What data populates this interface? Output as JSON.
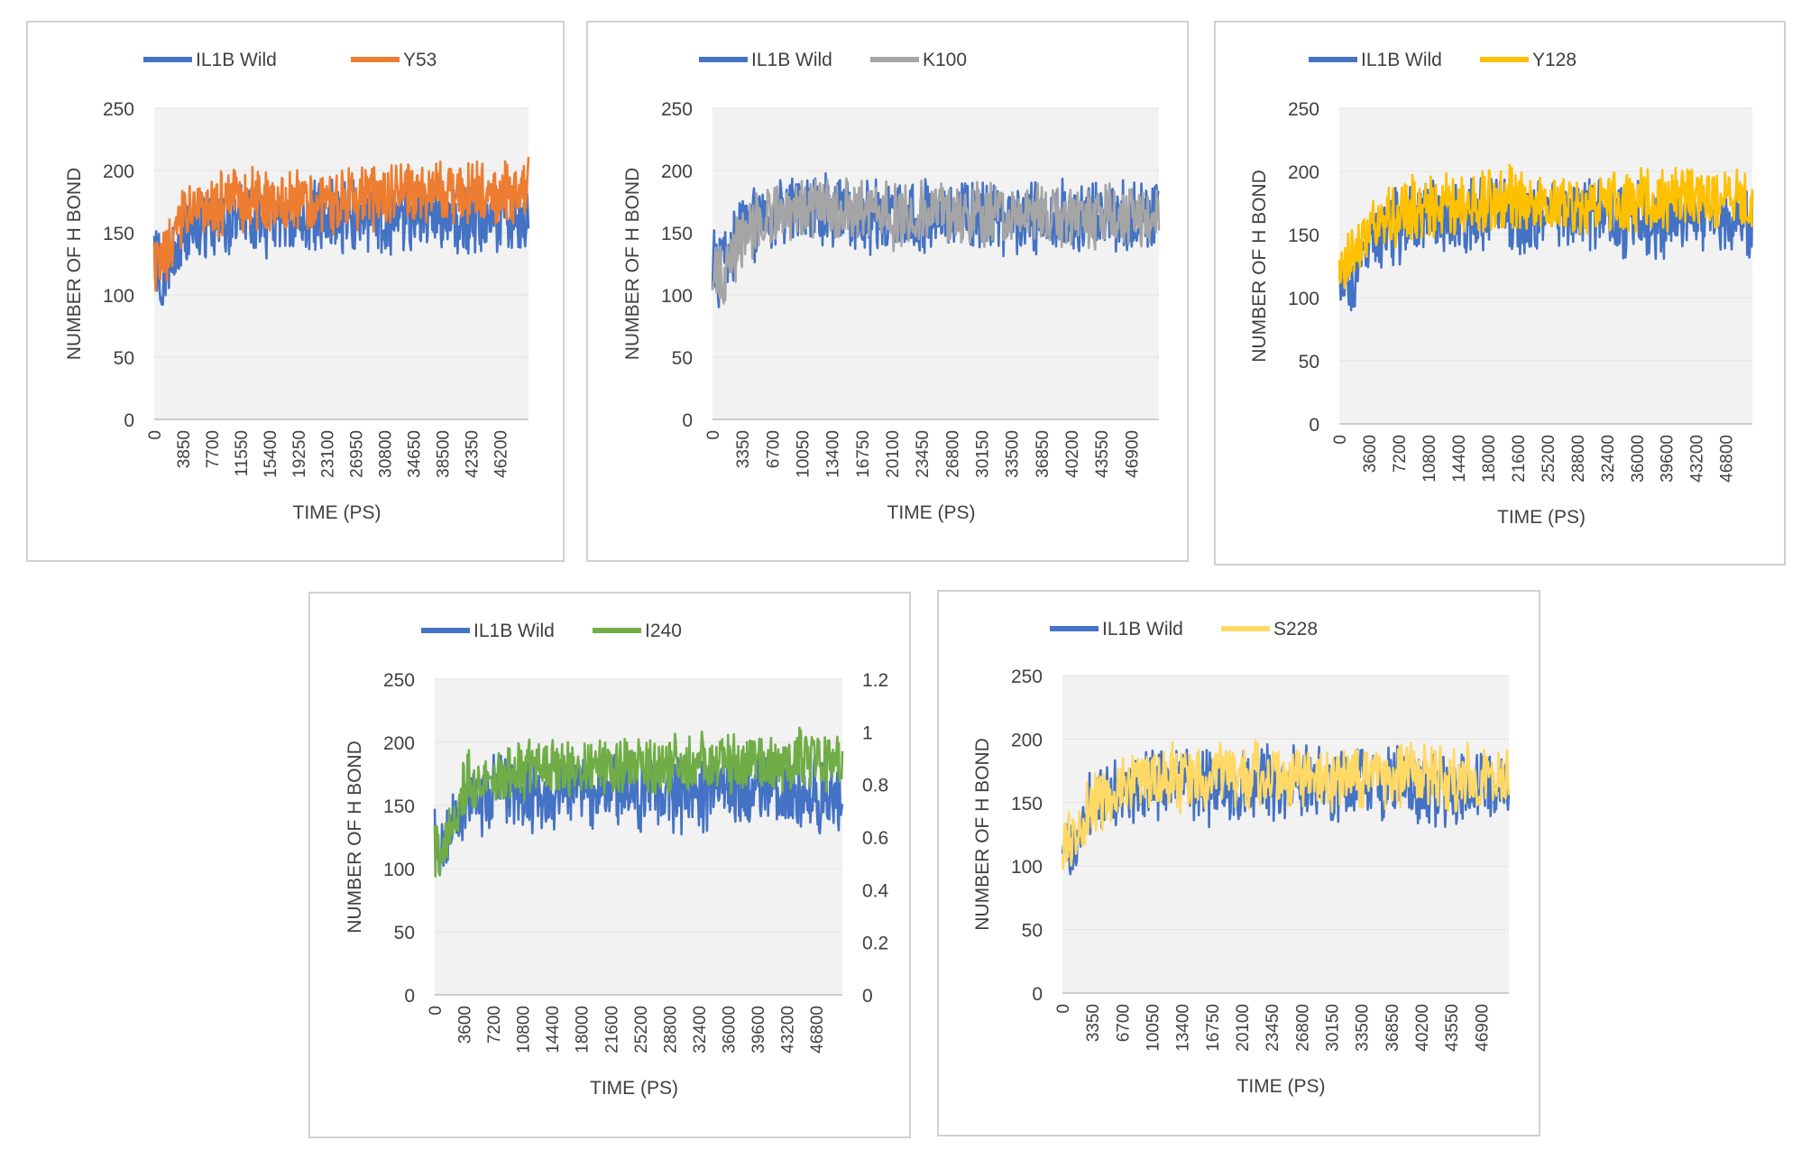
{
  "colors": {
    "wild": "#4472C4",
    "orange": "#ED7D31",
    "gray": "#A5A5A5",
    "gold": "#FFC000",
    "green": "#70AD47",
    "lightgold": "#FFD966",
    "plot_bg": "#F2F2F2",
    "grid": "#E2E2E2"
  },
  "chart_data": [
    {
      "type": "line",
      "title": "",
      "xlabel": "TIME (PS)",
      "ylabel": "NUMBER OF H BOND",
      "ylim": [
        0,
        250
      ],
      "yticks": [
        "250",
        "200",
        "150",
        "100",
        "50",
        "0"
      ],
      "xticks": [
        "0",
        "3850",
        "7700",
        "11550",
        "15400",
        "19250",
        "23100",
        "26950",
        "30800",
        "34650",
        "38500",
        "42350",
        "46200"
      ],
      "x_range": [
        0,
        50000
      ],
      "series": [
        {
          "name": "IL1B Wild",
          "color_key": "wild",
          "base": 160,
          "amp": 24,
          "start": 135,
          "values_approx": [
            100,
            150,
            158,
            162,
            160,
            161,
            163,
            160,
            162,
            161,
            160,
            162,
            158
          ]
        },
        {
          "name": "Y53",
          "color_key": "orange",
          "base": 178,
          "amp": 22,
          "start": 130,
          "values_approx": [
            110,
            165,
            172,
            175,
            176,
            177,
            178,
            179,
            180,
            182,
            181,
            180,
            185
          ]
        }
      ]
    },
    {
      "type": "line",
      "title": "",
      "xlabel": "TIME (PS)",
      "ylabel": "NUMBER OF H BOND",
      "ylim": [
        0,
        250
      ],
      "yticks": [
        "250",
        "200",
        "150",
        "100",
        "50",
        "0"
      ],
      "xticks": [
        "0",
        "3350",
        "6700",
        "10050",
        "13400",
        "16750",
        "20100",
        "23450",
        "26800",
        "30150",
        "33500",
        "36850",
        "40200",
        "43550",
        "46900"
      ],
      "x_range": [
        0,
        50000
      ],
      "series": [
        {
          "name": "IL1B Wild",
          "color_key": "wild",
          "base": 163,
          "amp": 25,
          "start": 130,
          "values_approx": [
            110,
            155,
            165,
            168,
            165,
            163,
            164,
            162,
            165,
            164,
            163,
            164,
            163,
            162,
            165
          ]
        },
        {
          "name": "K100",
          "color_key": "gray",
          "base": 165,
          "amp": 22,
          "start": 125,
          "values_approx": [
            100,
            150,
            165,
            175,
            168,
            165,
            163,
            166,
            165,
            167,
            165,
            166,
            164,
            165,
            166
          ]
        }
      ]
    },
    {
      "type": "line",
      "title": "",
      "xlabel": "TIME (PS)",
      "ylabel": "NUMBER OF H BOND",
      "ylim": [
        0,
        250
      ],
      "yticks": [
        "250",
        "200",
        "150",
        "100",
        "50",
        "0"
      ],
      "xticks": [
        "0",
        "3600",
        "7200",
        "10800",
        "14400",
        "18000",
        "21600",
        "25200",
        "28800",
        "32400",
        "36000",
        "39600",
        "43200",
        "46800"
      ],
      "x_range": [
        0,
        50000
      ],
      "series": [
        {
          "name": "IL1B Wild",
          "color_key": "wild",
          "base": 163,
          "amp": 25,
          "start": 130,
          "values_approx": [
            100,
            150,
            160,
            165,
            163,
            165,
            162,
            164,
            163,
            162,
            161,
            163,
            160,
            162
          ]
        },
        {
          "name": "Y128",
          "color_key": "gold",
          "base": 175,
          "amp": 22,
          "start": 125,
          "values_approx": [
            115,
            160,
            168,
            172,
            174,
            176,
            178,
            176,
            175,
            178,
            177,
            180,
            182,
            181
          ]
        }
      ]
    },
    {
      "type": "line",
      "title": "",
      "xlabel": "TIME (PS)",
      "ylabel": "NUMBER OF H BOND",
      "ylim": [
        0,
        250
      ],
      "yticks": [
        "250",
        "200",
        "150",
        "100",
        "50",
        "0"
      ],
      "y2ticks": [
        "1.2",
        "1",
        "0.8",
        "0.6",
        "0.4",
        "0.2",
        "0"
      ],
      "y2lim": [
        0,
        1.2
      ],
      "xticks": [
        "0",
        "3600",
        "7200",
        "10800",
        "14400",
        "18000",
        "21600",
        "25200",
        "28800",
        "32400",
        "36000",
        "39600",
        "43200",
        "46800"
      ],
      "x_range": [
        0,
        50000
      ],
      "series": [
        {
          "name": "IL1B Wild",
          "color_key": "wild",
          "base": 160,
          "amp": 25,
          "start": 130,
          "values_approx": [
            100,
            150,
            158,
            160,
            162,
            160,
            161,
            160,
            159,
            161,
            160,
            158,
            160,
            158
          ]
        },
        {
          "name": "I240",
          "color_key": "green",
          "base": 180,
          "amp": 20,
          "start": 120,
          "values_approx": [
            100,
            170,
            175,
            178,
            178,
            180,
            180,
            182,
            182,
            183,
            184,
            185,
            186,
            185
          ]
        }
      ]
    },
    {
      "type": "line",
      "title": "",
      "xlabel": "TIME (PS)",
      "ylabel": "NUMBER OF H BOND",
      "ylim": [
        0,
        250
      ],
      "yticks": [
        "250",
        "200",
        "150",
        "100",
        "50",
        "0"
      ],
      "xticks": [
        "0",
        "3350",
        "6700",
        "10050",
        "13400",
        "16750",
        "20100",
        "23450",
        "26800",
        "30150",
        "33500",
        "36850",
        "40200",
        "43550",
        "46900"
      ],
      "x_range": [
        0,
        50000
      ],
      "series": [
        {
          "name": "IL1B Wild",
          "color_key": "wild",
          "base": 162,
          "amp": 25,
          "start": 130,
          "values_approx": [
            100,
            150,
            160,
            165,
            163,
            162,
            164,
            163,
            162,
            165,
            163,
            164,
            162,
            163,
            162
          ]
        },
        {
          "name": "S228",
          "color_key": "lightgold",
          "base": 168,
          "amp": 22,
          "start": 125,
          "values_approx": [
            110,
            150,
            165,
            170,
            168,
            170,
            172,
            170,
            168,
            170,
            171,
            172,
            170,
            171,
            172
          ]
        }
      ]
    }
  ]
}
